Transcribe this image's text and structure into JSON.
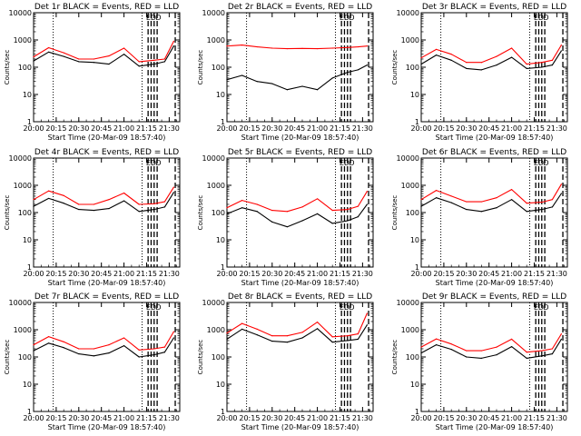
{
  "figure": {
    "x_tick_labels": [
      "20:00",
      "20:15",
      "20:30",
      "20:45",
      "21:00",
      "21:15",
      "21:30"
    ],
    "y_tick_labels": [
      "1",
      "10",
      "100",
      "1000",
      "10000"
    ],
    "colors": {
      "events": "#000000",
      "lld": "#ff0000",
      "background": "#ffffff"
    }
  },
  "chart_data": [
    {
      "type": "line",
      "title": "Det 1r BLACK = Events, RED = LLD",
      "xlabel": "Start Time (20-Mar-09 18:57:40)",
      "ylabel": "Counts/sec",
      "xlim": [
        "20:00",
        "21:37"
      ],
      "ylim": [
        1,
        10000
      ],
      "yscale": "log",
      "x": [
        "20:00",
        "20:10",
        "20:20",
        "20:30",
        "20:40",
        "20:50",
        "21:00",
        "21:10",
        "21:20",
        "21:27",
        "21:33"
      ],
      "series": [
        {
          "name": "Events",
          "color": "#000000",
          "values": [
            170,
            360,
            250,
            160,
            150,
            130,
            300,
            110,
            130,
            160,
            600
          ]
        },
        {
          "name": "LLD",
          "color": "#ff0000",
          "values": [
            240,
            520,
            340,
            200,
            200,
            260,
            500,
            160,
            180,
            200,
            900
          ]
        }
      ],
      "annotations": [
        "ED",
        "D"
      ]
    },
    {
      "type": "line",
      "title": "Det 2r BLACK = Events, RED = LLD",
      "xlabel": "Start Time (20-Mar-09 18:57:40)",
      "ylabel": "Counts/sec",
      "xlim": [
        "20:00",
        "21:37"
      ],
      "ylim": [
        1,
        10000
      ],
      "yscale": "log",
      "x": [
        "20:00",
        "20:10",
        "20:20",
        "20:30",
        "20:40",
        "20:50",
        "21:00",
        "21:10",
        "21:20",
        "21:27",
        "21:33"
      ],
      "series": [
        {
          "name": "Events",
          "color": "#000000",
          "values": [
            35,
            50,
            30,
            25,
            15,
            20,
            15,
            40,
            65,
            80,
            120
          ]
        },
        {
          "name": "LLD",
          "color": "#ff0000",
          "values": [
            600,
            650,
            560,
            500,
            480,
            490,
            480,
            500,
            530,
            560,
            600
          ]
        }
      ],
      "annotations": [
        "ED",
        "D"
      ]
    },
    {
      "type": "line",
      "title": "Det 3r BLACK = Events, RED = LLD",
      "xlabel": "Start Time (20-Mar-09 18:57:40)",
      "ylabel": "Counts/sec",
      "xlim": [
        "20:00",
        "21:37"
      ],
      "ylim": [
        1,
        10000
      ],
      "yscale": "log",
      "x": [
        "20:00",
        "20:10",
        "20:20",
        "20:30",
        "20:40",
        "20:50",
        "21:00",
        "21:10",
        "21:20",
        "21:27",
        "21:33"
      ],
      "series": [
        {
          "name": "Events",
          "color": "#000000",
          "values": [
            130,
            280,
            180,
            90,
            80,
            120,
            230,
            90,
            100,
            120,
            400
          ]
        },
        {
          "name": "LLD",
          "color": "#ff0000",
          "values": [
            220,
            450,
            300,
            150,
            150,
            250,
            500,
            130,
            150,
            180,
            650
          ]
        }
      ],
      "annotations": [
        "ED",
        "D"
      ]
    },
    {
      "type": "line",
      "title": "Det 4r BLACK = Events, RED = LLD",
      "xlabel": "Start Time (20-Mar-09 18:57:40)",
      "ylabel": "Counts/sec",
      "xlim": [
        "20:00",
        "21:37"
      ],
      "ylim": [
        1,
        10000
      ],
      "yscale": "log",
      "x": [
        "20:00",
        "20:10",
        "20:20",
        "20:30",
        "20:40",
        "20:50",
        "21:00",
        "21:10",
        "21:20",
        "21:27",
        "21:33"
      ],
      "series": [
        {
          "name": "Events",
          "color": "#000000",
          "values": [
            170,
            330,
            220,
            130,
            120,
            140,
            270,
            110,
            130,
            160,
            550
          ]
        },
        {
          "name": "LLD",
          "color": "#ff0000",
          "values": [
            300,
            620,
            420,
            200,
            200,
            300,
            520,
            200,
            210,
            250,
            850
          ]
        }
      ],
      "annotations": [
        "ED",
        "D"
      ]
    },
    {
      "type": "line",
      "title": "Det 5r BLACK = Events, RED = LLD",
      "xlabel": "Start Time (20-Mar-09 18:57:40)",
      "ylabel": "Counts/sec",
      "xlim": [
        "20:00",
        "21:37"
      ],
      "ylim": [
        1,
        10000
      ],
      "yscale": "log",
      "x": [
        "20:00",
        "20:10",
        "20:20",
        "20:30",
        "20:40",
        "20:50",
        "21:00",
        "21:10",
        "21:20",
        "21:27",
        "21:33"
      ],
      "series": [
        {
          "name": "Events",
          "color": "#000000",
          "values": [
            90,
            150,
            110,
            45,
            30,
            50,
            90,
            40,
            50,
            70,
            200
          ]
        },
        {
          "name": "LLD",
          "color": "#ff0000",
          "values": [
            150,
            280,
            200,
            120,
            110,
            160,
            320,
            120,
            130,
            170,
            600
          ]
        }
      ],
      "annotations": [
        "ED",
        "D"
      ]
    },
    {
      "type": "line",
      "title": "Det 6r BLACK = Events, RED = LLD",
      "xlabel": "Start Time (20-Mar-09 18:57:40)",
      "ylabel": "Counts/sec",
      "xlim": [
        "20:00",
        "21:37"
      ],
      "ylim": [
        1,
        10000
      ],
      "yscale": "log",
      "x": [
        "20:00",
        "20:10",
        "20:20",
        "20:30",
        "20:40",
        "20:50",
        "21:00",
        "21:10",
        "21:20",
        "21:27",
        "21:33"
      ],
      "series": [
        {
          "name": "Events",
          "color": "#000000",
          "values": [
            170,
            350,
            230,
            130,
            110,
            150,
            300,
            110,
            130,
            160,
            500
          ]
        },
        {
          "name": "LLD",
          "color": "#ff0000",
          "values": [
            300,
            650,
            400,
            250,
            250,
            350,
            700,
            220,
            240,
            300,
            1100
          ]
        }
      ],
      "annotations": [
        "ED",
        "D"
      ]
    },
    {
      "type": "line",
      "title": "Det 7r BLACK = Events, RED = LLD",
      "xlabel": "Start Time (20-Mar-09 18:57:40)",
      "ylabel": "Counts/sec",
      "xlim": [
        "20:00",
        "21:37"
      ],
      "ylim": [
        1,
        10000
      ],
      "yscale": "log",
      "x": [
        "20:00",
        "20:10",
        "20:20",
        "20:30",
        "20:40",
        "20:50",
        "21:00",
        "21:10",
        "21:20",
        "21:27",
        "21:33"
      ],
      "series": [
        {
          "name": "Events",
          "color": "#000000",
          "values": [
            170,
            320,
            220,
            130,
            110,
            140,
            260,
            100,
            120,
            150,
            500
          ]
        },
        {
          "name": "LLD",
          "color": "#ff0000",
          "values": [
            280,
            560,
            360,
            200,
            200,
            280,
            500,
            180,
            200,
            230,
            850
          ]
        }
      ],
      "annotations": [
        "ED",
        "D"
      ]
    },
    {
      "type": "line",
      "title": "Det 8r BLACK = Events, RED = LLD",
      "xlabel": "Start Time (20-Mar-09 18:57:40)",
      "ylabel": "Counts/sec",
      "xlim": [
        "20:00",
        "21:37"
      ],
      "ylim": [
        1,
        10000
      ],
      "yscale": "log",
      "x": [
        "20:00",
        "20:10",
        "20:20",
        "20:30",
        "20:40",
        "20:50",
        "21:00",
        "21:10",
        "21:20",
        "21:27",
        "21:33"
      ],
      "series": [
        {
          "name": "Events",
          "color": "#000000",
          "values": [
            450,
            1050,
            650,
            380,
            350,
            500,
            1100,
            350,
            400,
            450,
            1500
          ]
        },
        {
          "name": "LLD",
          "color": "#ff0000",
          "values": [
            750,
            1700,
            1050,
            600,
            600,
            800,
            1900,
            550,
            600,
            700,
            4000
          ]
        }
      ],
      "annotations": [
        "ED",
        "D"
      ]
    },
    {
      "type": "line",
      "title": "Det 9r BLACK = Events, RED = LLD",
      "xlabel": "Start Time (20-Mar-09 18:57:40)",
      "ylabel": "Counts/sec",
      "xlim": [
        "20:00",
        "21:37"
      ],
      "ylim": [
        1,
        10000
      ],
      "yscale": "log",
      "x": [
        "20:00",
        "20:10",
        "20:20",
        "20:30",
        "20:40",
        "20:50",
        "21:00",
        "21:10",
        "21:20",
        "21:27",
        "21:33"
      ],
      "series": [
        {
          "name": "Events",
          "color": "#000000",
          "values": [
            140,
            280,
            190,
            100,
            90,
            120,
            240,
            90,
            110,
            130,
            450
          ]
        },
        {
          "name": "LLD",
          "color": "#ff0000",
          "values": [
            230,
            460,
            300,
            170,
            170,
            230,
            450,
            150,
            170,
            200,
            700
          ]
        }
      ],
      "annotations": [
        "ED",
        "D"
      ]
    }
  ]
}
